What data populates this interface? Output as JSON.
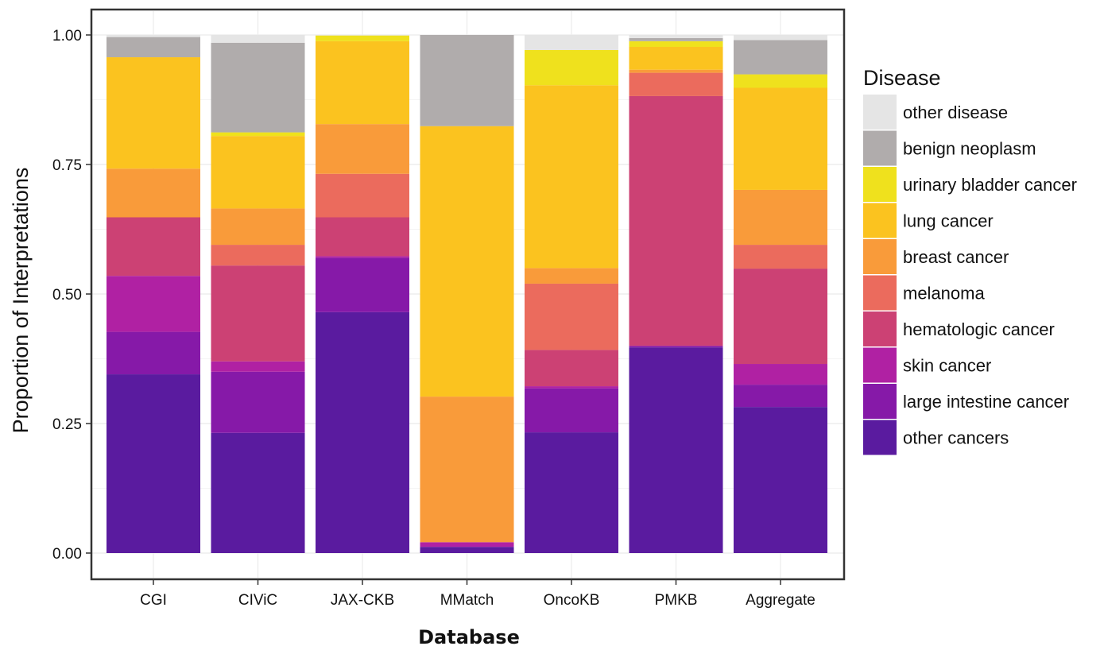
{
  "chart_data": {
    "type": "bar",
    "stacked": true,
    "title": "",
    "xlabel": "Database",
    "ylabel": "Proportion of Interpretations",
    "ylim": [
      0,
      1
    ],
    "yticks": [
      "0.00",
      "0.25",
      "0.50",
      "0.75",
      "1.00"
    ],
    "grid": true,
    "legend_title": "Disease",
    "legend_position": "right",
    "categories": [
      "CGI",
      "CIViC",
      "JAX-CKB",
      "MMatch",
      "OncoKB",
      "PMKB",
      "Aggregate"
    ],
    "series": [
      {
        "name": "other cancers",
        "color": "#5a1b9f",
        "values": [
          0.345,
          0.232,
          0.465,
          0.012,
          0.233,
          0.397,
          0.282
        ]
      },
      {
        "name": "large intestine cancer",
        "color": "#8619a8",
        "values": [
          0.082,
          0.118,
          0.105,
          0.0,
          0.085,
          0.003,
          0.043
        ]
      },
      {
        "name": "skin cancer",
        "color": "#b021a3",
        "values": [
          0.108,
          0.02,
          0.003,
          0.009,
          0.004,
          0.0,
          0.04
        ]
      },
      {
        "name": "hematologic cancer",
        "color": "#cc4174",
        "values": [
          0.113,
          0.185,
          0.075,
          0.0,
          0.07,
          0.482,
          0.184
        ]
      },
      {
        "name": "melanoma",
        "color": "#eb6b5d",
        "values": [
          0.0,
          0.04,
          0.084,
          0.0,
          0.128,
          0.045,
          0.046
        ]
      },
      {
        "name": "breast cancer",
        "color": "#f99b3a",
        "values": [
          0.094,
          0.07,
          0.096,
          0.281,
          0.03,
          0.006,
          0.106
        ]
      },
      {
        "name": "lung cancer",
        "color": "#fbc31f",
        "values": [
          0.215,
          0.14,
          0.16,
          0.522,
          0.353,
          0.044,
          0.197
        ]
      },
      {
        "name": "urinary bladder cancer",
        "color": "#efe11d",
        "values": [
          0.0,
          0.007,
          0.011,
          0.0,
          0.068,
          0.011,
          0.026
        ]
      },
      {
        "name": "benign neoplasm",
        "color": "#b0acac",
        "values": [
          0.039,
          0.173,
          0.0,
          0.176,
          0.0,
          0.006,
          0.066
        ]
      },
      {
        "name": "other disease",
        "color": "#e5e5e5",
        "values": [
          0.004,
          0.015,
          0.001,
          0.0,
          0.029,
          0.006,
          0.01
        ]
      }
    ]
  }
}
